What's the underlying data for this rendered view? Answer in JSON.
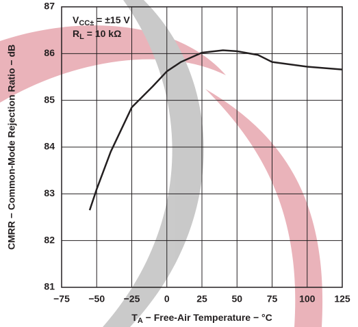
{
  "chart_data": {
    "type": "line",
    "y_label": "CMRR − Common-Mode Rejection Ratio − dB",
    "x_label": {
      "main": "T",
      "sub": "A",
      "rest": " − Free-Air Temperature − °C"
    },
    "annotations": [
      {
        "main": "V",
        "sub": "CC±",
        "rest": " = ±15 V"
      },
      {
        "main": "R",
        "sub": "L",
        "rest": " = 10 kΩ"
      }
    ],
    "x": [
      -55,
      -50,
      -40,
      -25,
      -10,
      0,
      10,
      25,
      40,
      50,
      65,
      75,
      100,
      125
    ],
    "series": [
      {
        "color": "#231f20",
        "values": [
          82.65,
          83.1,
          83.9,
          84.85,
          85.3,
          85.62,
          85.82,
          86.02,
          86.07,
          86.05,
          85.97,
          85.82,
          85.72,
          85.66
        ]
      }
    ],
    "xlim": [
      -75,
      125
    ],
    "xticks": [
      {
        "value": -75,
        "label": "−75"
      },
      {
        "value": -50,
        "label": "−50"
      },
      {
        "value": -25,
        "label": "−25"
      },
      0,
      25,
      50,
      75,
      100,
      125
    ],
    "ylim": [
      81,
      87
    ],
    "yticks": [
      81,
      82,
      83,
      84,
      85,
      86,
      87
    ],
    "grid": true
  }
}
